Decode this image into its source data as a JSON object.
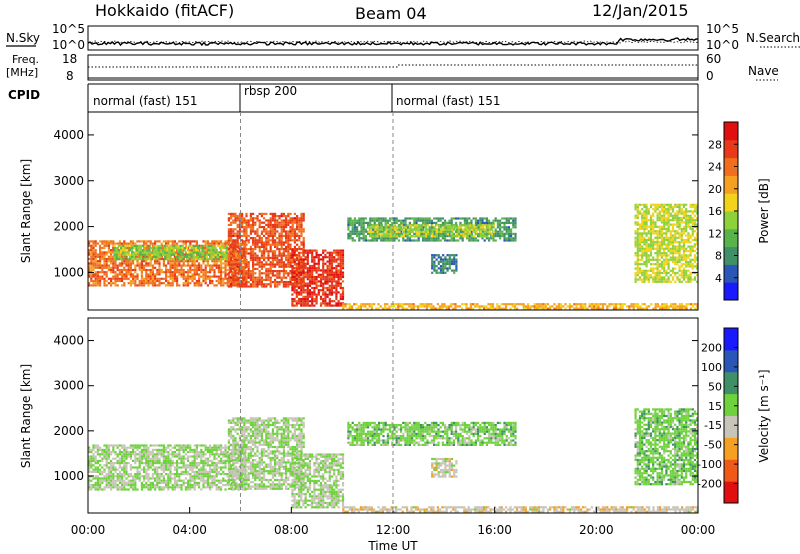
{
  "header": {
    "station": "Hokkaido (fitACF)",
    "beam": "Beam 04",
    "date": "12/Jan/2015"
  },
  "strip_panels": {
    "nsky": {
      "label": "N.Sky",
      "ticks": [
        "10^5",
        "10^0"
      ],
      "right_label": "N.Search",
      "right_ticks": [
        "10^5",
        "10^0"
      ]
    },
    "freq": {
      "label_line1": "Freq.",
      "label_line2": "[MHz]",
      "ticks": [
        "18",
        "8"
      ],
      "right_label": "Nave",
      "right_ticks": [
        "60",
        "0"
      ]
    },
    "cpid": {
      "label": "CPID",
      "segments": [
        {
          "label": "normal (fast) 151",
          "start_hour": 0,
          "end_hour": 6
        },
        {
          "label": "rbsp 200",
          "start_hour": 6,
          "end_hour": 12
        },
        {
          "label": "normal (fast) 151",
          "start_hour": 12,
          "end_hour": 24
        }
      ]
    }
  },
  "chart_data": [
    {
      "type": "heatmap",
      "panel": "power",
      "ylabel": "Slant Range [km]",
      "ylim": [
        180,
        4500
      ],
      "yticks": [
        1000,
        2000,
        3000,
        4000
      ],
      "xlim": [
        0,
        24
      ],
      "colorbar": {
        "label": "Power [dB]",
        "range": [
          0,
          32
        ],
        "ticks": [
          4,
          8,
          12,
          16,
          20,
          24,
          28
        ],
        "colors": [
          "#1a1aff",
          "#2a56b8",
          "#3f8f67",
          "#59b24a",
          "#8fd13a",
          "#f2d21a",
          "#f5a020",
          "#f06e1e",
          "#e83a18",
          "#e01010"
        ]
      },
      "regions": [
        {
          "t0": 0.0,
          "t1": 6.2,
          "r0": 700,
          "r1": 1700,
          "level": 24
        },
        {
          "t0": 1.0,
          "t1": 5.5,
          "r0": 1300,
          "r1": 1600,
          "level": 14
        },
        {
          "t0": 5.5,
          "t1": 8.5,
          "r0": 700,
          "r1": 2300,
          "level": 26
        },
        {
          "t0": 8.0,
          "t1": 10.0,
          "r0": 300,
          "r1": 1500,
          "level": 28
        },
        {
          "t0": 10.0,
          "t1": 24.0,
          "r0": 200,
          "r1": 330,
          "level": 20
        },
        {
          "t0": 10.2,
          "t1": 16.8,
          "r0": 1700,
          "r1": 2200,
          "level": 9
        },
        {
          "t0": 11.0,
          "t1": 16.0,
          "r0": 1800,
          "r1": 2050,
          "level": 15
        },
        {
          "t0": 13.5,
          "t1": 14.5,
          "r0": 1000,
          "r1": 1400,
          "level": 7
        },
        {
          "t0": 21.5,
          "t1": 24.0,
          "r0": 800,
          "r1": 2500,
          "level": 16
        }
      ]
    },
    {
      "type": "heatmap",
      "panel": "velocity",
      "ylabel": "Slant Range [km]",
      "ylim": [
        180,
        4500
      ],
      "yticks": [
        1000,
        2000,
        3000,
        4000
      ],
      "xlim": [
        0,
        24
      ],
      "xticks": [
        "00:00",
        "04:00",
        "08:00",
        "12:00",
        "16:00",
        "20:00",
        "00:00"
      ],
      "xlabel": "Time UT",
      "colorbar": {
        "label": "Velocity [m s⁻¹]",
        "range": [
          -250,
          250
        ],
        "ticks": [
          "200",
          "100",
          "50",
          "15",
          "-15",
          "-50",
          "-100",
          "-200"
        ],
        "colors": [
          "#e01010",
          "#f05a18",
          "#f5a020",
          "#c8c4b8",
          "#6fd23c",
          "#3f8f67",
          "#2a56b8",
          "#1a1aff"
        ]
      },
      "regions": [
        {
          "t0": 0.0,
          "t1": 6.2,
          "r0": 700,
          "r1": 1700,
          "level": 0
        },
        {
          "t0": 5.5,
          "t1": 8.5,
          "r0": 700,
          "r1": 2300,
          "level": 0
        },
        {
          "t0": 8.0,
          "t1": 10.0,
          "r0": 300,
          "r1": 1500,
          "level": 0
        },
        {
          "t0": 10.0,
          "t1": 24.0,
          "r0": 200,
          "r1": 330,
          "level": -40
        },
        {
          "t0": 10.2,
          "t1": 16.8,
          "r0": 1700,
          "r1": 2200,
          "level": 30
        },
        {
          "t0": 13.5,
          "t1": 14.5,
          "r0": 1000,
          "r1": 1400,
          "level": -30
        },
        {
          "t0": 21.5,
          "t1": 24.0,
          "r0": 800,
          "r1": 2500,
          "level": 35
        }
      ]
    }
  ]
}
